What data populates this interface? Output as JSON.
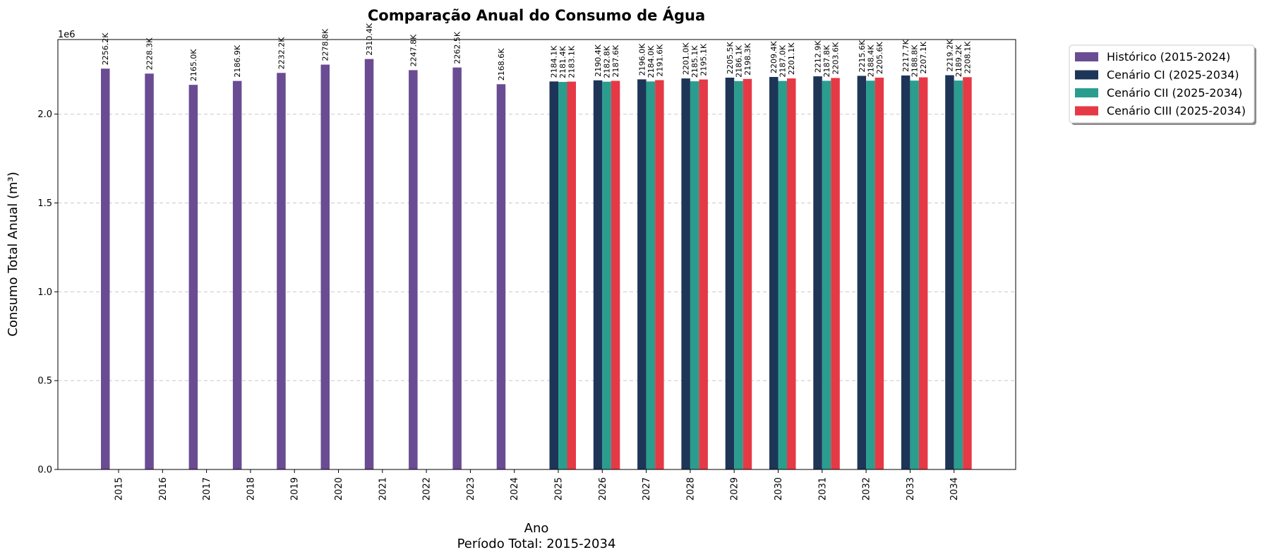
{
  "chart_data": {
    "type": "bar",
    "title": "Comparação Anual do Consumo de Água",
    "xlabel": "Ano",
    "xlabel_sub": "Período Total: 2015-2034",
    "ylabel": "Consumo Total Anual (m³)",
    "y_offset_label": "1e6",
    "ylim": [
      0,
      2420000
    ],
    "yticks": [
      0,
      500000,
      1000000,
      1500000,
      2000000
    ],
    "ytick_labels": [
      "0.0",
      "0.5",
      "1.0",
      "1.5",
      "2.0"
    ],
    "grid": "horizontal dashed",
    "legend_position": "outside top-right",
    "categories": [
      "2015",
      "2016",
      "2017",
      "2018",
      "2019",
      "2020",
      "2021",
      "2022",
      "2023",
      "2024",
      "2025",
      "2026",
      "2027",
      "2028",
      "2029",
      "2030",
      "2031",
      "2032",
      "2033",
      "2034"
    ],
    "series": [
      {
        "name": "Histórico (2015-2024)",
        "color": "#6a4c93",
        "values": [
          2256200,
          2228300,
          2165000,
          2186900,
          2232200,
          2278800,
          2310400,
          2247800,
          2262500,
          2168600,
          null,
          null,
          null,
          null,
          null,
          null,
          null,
          null,
          null,
          null
        ],
        "labels": [
          "2256.2K",
          "2228.3K",
          "2165.0K",
          "2186.9K",
          "2232.2K",
          "2278.8K",
          "2310.4K",
          "2247.8K",
          "2262.5K",
          "2168.6K",
          null,
          null,
          null,
          null,
          null,
          null,
          null,
          null,
          null,
          null
        ]
      },
      {
        "name": "Cenário CI (2025-2034)",
        "color": "#1d3557",
        "values": [
          null,
          null,
          null,
          null,
          null,
          null,
          null,
          null,
          null,
          null,
          2184100,
          2190400,
          2196000,
          2201000,
          2205500,
          2209400,
          2212900,
          2215600,
          2217700,
          2219200
        ],
        "labels": [
          null,
          null,
          null,
          null,
          null,
          null,
          null,
          null,
          null,
          null,
          "2184.1K",
          "2190.4K",
          "2196.0K",
          "2201.0K",
          "2205.5K",
          "2209.4K",
          "2212.9K",
          "2215.6K",
          "2217.7K",
          "2219.2K"
        ]
      },
      {
        "name": "Cenário CII (2025-2034)",
        "color": "#2a9d8f",
        "values": [
          null,
          null,
          null,
          null,
          null,
          null,
          null,
          null,
          null,
          null,
          2181400,
          2182800,
          2184000,
          2185100,
          2186100,
          2187000,
          2187800,
          2188400,
          2188800,
          2189200
        ],
        "labels": [
          null,
          null,
          null,
          null,
          null,
          null,
          null,
          null,
          null,
          null,
          "2181.4K",
          "2182.8K",
          "2184.0K",
          "2185.1K",
          "2186.1K",
          "2187.0K",
          "2187.8K",
          "2188.4K",
          "2188.8K",
          "2189.2K"
        ]
      },
      {
        "name": "Cenário CIII (2025-2034)",
        "color": "#e63946",
        "values": [
          null,
          null,
          null,
          null,
          null,
          null,
          null,
          null,
          null,
          null,
          2183100,
          2187600,
          2191600,
          2195100,
          2198300,
          2201100,
          2203600,
          2205600,
          2207100,
          2208100
        ],
        "labels": [
          null,
          null,
          null,
          null,
          null,
          null,
          null,
          null,
          null,
          null,
          "2183.1K",
          "2187.6K",
          "2191.6K",
          "2195.1K",
          "2198.3K",
          "2201.1K",
          "2203.6K",
          "2205.6K",
          "2207.1K",
          "2208.1K"
        ]
      }
    ]
  }
}
